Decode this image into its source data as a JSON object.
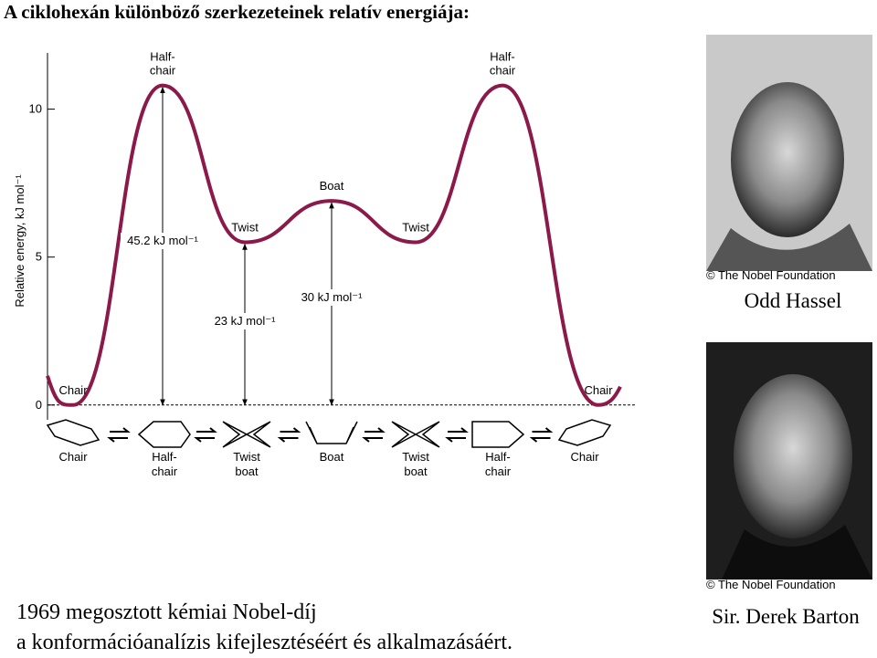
{
  "title": "A ciklohexán különböző szerkezeteinek relatív energiája:",
  "chart": {
    "y_label": "Relative energy, kJ mol⁻¹",
    "ylim": [
      -0.5,
      11.9
    ],
    "yticks": [
      0,
      5,
      10
    ],
    "points": [
      {
        "label": [
          "Chair"
        ],
        "value": 0
      },
      {
        "label": [
          "Half-",
          "chair"
        ],
        "value": 10.8
      },
      {
        "label": [
          "Twist"
        ],
        "value": 5.5
      },
      {
        "label": [
          "Boat"
        ],
        "value": 6.9
      },
      {
        "label": [
          "Twist"
        ],
        "value": 5.5
      },
      {
        "label": [
          "Half-",
          "chair"
        ],
        "value": 10.8
      },
      {
        "label": [
          "Chair"
        ],
        "value": 0
      }
    ],
    "annotations": [
      "45.2 kJ mol⁻¹",
      "23 kJ mol⁻¹",
      "30 kJ mol⁻¹"
    ],
    "conformers": [
      [
        "Chair"
      ],
      [
        "Half-",
        "chair"
      ],
      [
        "Twist",
        "boat"
      ],
      [
        "Boat"
      ],
      [
        "Twist",
        "boat"
      ],
      [
        "Half-",
        "chair"
      ],
      [
        "Chair"
      ]
    ]
  },
  "photos": [
    {
      "credit": "© The Nobel Foundation",
      "name": "Odd Hassel"
    },
    {
      "credit": "© The Nobel Foundation",
      "name": "Sir. Derek Barton"
    }
  ],
  "footer": [
    "1969 megosztott kémiai Nobel-díj",
    "a konformációanalízis kifejlesztéséért és alkalmazásáért."
  ]
}
